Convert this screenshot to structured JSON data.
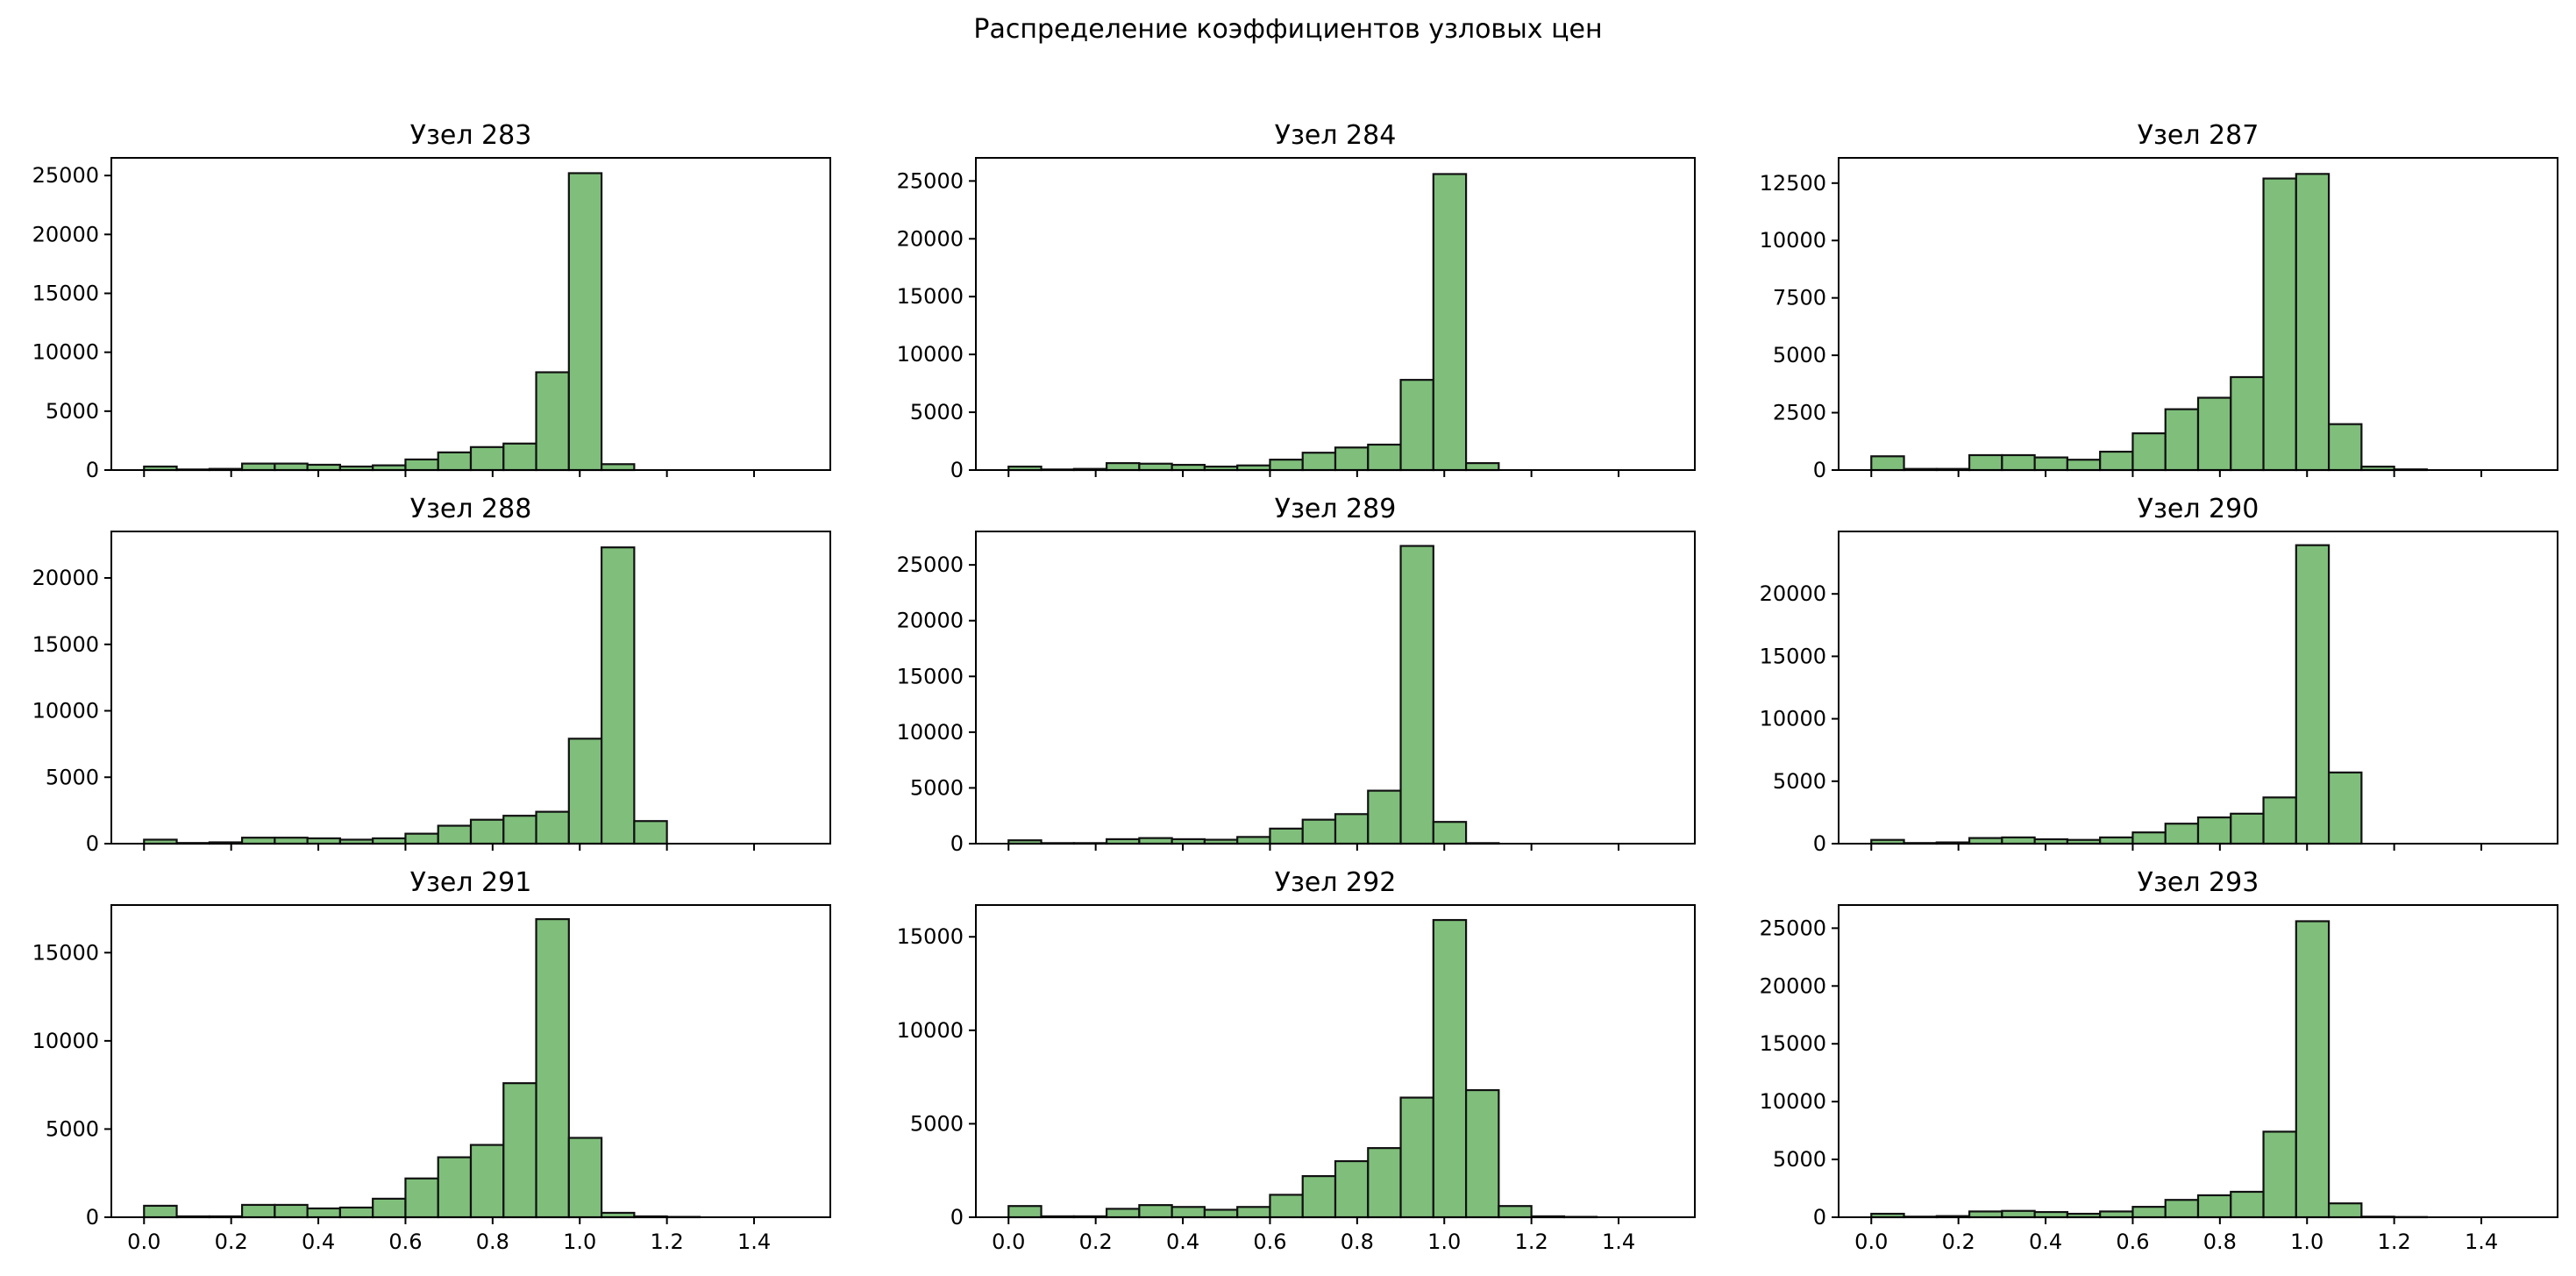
{
  "figure": {
    "suptitle": "Распределение коэффициентов узловых цен"
  },
  "style": {
    "bar_fill": "#7fbf7b",
    "bar_edge": "#111111"
  },
  "chart_data": [
    {
      "type": "bar",
      "title": "Узел 283",
      "bin_edges": [
        0,
        0.075,
        0.15,
        0.225,
        0.3,
        0.375,
        0.45,
        0.525,
        0.6,
        0.675,
        0.75,
        0.825,
        0.9,
        0.975,
        1.05,
        1.125,
        1.2,
        1.275,
        1.35,
        1.425,
        1.5
      ],
      "values": [
        300,
        50,
        100,
        550,
        550,
        450,
        300,
        400,
        900,
        1500,
        1950,
        2250,
        8300,
        25200,
        500,
        0,
        0,
        0,
        0,
        0
      ],
      "ylim": [
        0,
        26500
      ],
      "yticks": [
        0,
        5000,
        10000,
        15000,
        20000,
        25000
      ],
      "xticks": [
        0.0,
        0.2,
        0.4,
        0.6,
        0.8,
        1.0,
        1.2,
        1.4
      ],
      "xlim": [
        -0.075,
        1.575
      ]
    },
    {
      "type": "bar",
      "title": "Узел 284",
      "bin_edges": [
        0,
        0.075,
        0.15,
        0.225,
        0.3,
        0.375,
        0.45,
        0.525,
        0.6,
        0.675,
        0.75,
        0.825,
        0.9,
        0.975,
        1.05,
        1.125,
        1.2,
        1.275,
        1.35,
        1.425,
        1.5
      ],
      "values": [
        300,
        50,
        100,
        600,
        550,
        450,
        300,
        400,
        900,
        1500,
        1950,
        2200,
        7800,
        25600,
        600,
        0,
        0,
        0,
        0,
        0
      ],
      "ylim": [
        0,
        27000
      ],
      "yticks": [
        0,
        5000,
        10000,
        15000,
        20000,
        25000
      ],
      "xticks": [
        0.0,
        0.2,
        0.4,
        0.6,
        0.8,
        1.0,
        1.2,
        1.4
      ],
      "xlim": [
        -0.075,
        1.575
      ]
    },
    {
      "type": "bar",
      "title": "Узел 287",
      "bin_edges": [
        0,
        0.075,
        0.15,
        0.225,
        0.3,
        0.375,
        0.45,
        0.525,
        0.6,
        0.675,
        0.75,
        0.825,
        0.9,
        0.975,
        1.05,
        1.125,
        1.2,
        1.275,
        1.35,
        1.425,
        1.5
      ],
      "values": [
        600,
        50,
        50,
        650,
        650,
        550,
        450,
        800,
        1600,
        2650,
        3150,
        4050,
        12700,
        12900,
        2000,
        150,
        30,
        0,
        0,
        0
      ],
      "ylim": [
        0,
        13600
      ],
      "yticks": [
        0,
        2500,
        5000,
        7500,
        10000,
        12500
      ],
      "xticks": [
        0.0,
        0.2,
        0.4,
        0.6,
        0.8,
        1.0,
        1.2,
        1.4
      ],
      "xlim": [
        -0.075,
        1.575
      ]
    },
    {
      "type": "bar",
      "title": "Узел 288",
      "bin_edges": [
        0,
        0.075,
        0.15,
        0.225,
        0.3,
        0.375,
        0.45,
        0.525,
        0.6,
        0.675,
        0.75,
        0.825,
        0.9,
        0.975,
        1.05,
        1.125,
        1.2,
        1.275,
        1.35,
        1.425,
        1.5
      ],
      "values": [
        300,
        50,
        100,
        450,
        450,
        400,
        300,
        400,
        750,
        1350,
        1800,
        2100,
        2400,
        7900,
        22300,
        1700,
        0,
        0,
        0,
        0
      ],
      "ylim": [
        0,
        23500
      ],
      "yticks": [
        0,
        5000,
        10000,
        15000,
        20000
      ],
      "xticks": [
        0.0,
        0.2,
        0.4,
        0.6,
        0.8,
        1.0,
        1.2,
        1.4
      ],
      "xlim": [
        -0.075,
        1.575
      ]
    },
    {
      "type": "bar",
      "title": "Узел 289",
      "bin_edges": [
        0,
        0.075,
        0.15,
        0.225,
        0.3,
        0.375,
        0.45,
        0.525,
        0.6,
        0.675,
        0.75,
        0.825,
        0.9,
        0.975,
        1.05,
        1.125,
        1.2,
        1.275,
        1.35,
        1.425,
        1.5
      ],
      "values": [
        300,
        50,
        50,
        400,
        500,
        400,
        350,
        600,
        1350,
        2150,
        2650,
        4750,
        26700,
        1950,
        50,
        0,
        0,
        0,
        0,
        0
      ],
      "ylim": [
        0,
        28000
      ],
      "yticks": [
        0,
        5000,
        10000,
        15000,
        20000,
        25000
      ],
      "xticks": [
        0.0,
        0.2,
        0.4,
        0.6,
        0.8,
        1.0,
        1.2,
        1.4
      ],
      "xlim": [
        -0.075,
        1.575
      ]
    },
    {
      "type": "bar",
      "title": "Узел 290",
      "bin_edges": [
        0,
        0.075,
        0.15,
        0.225,
        0.3,
        0.375,
        0.45,
        0.525,
        0.6,
        0.675,
        0.75,
        0.825,
        0.9,
        0.975,
        1.05,
        1.125,
        1.2,
        1.275,
        1.35,
        1.425,
        1.5
      ],
      "values": [
        300,
        50,
        100,
        450,
        500,
        350,
        300,
        500,
        900,
        1600,
        2100,
        2400,
        3700,
        23900,
        5700,
        0,
        0,
        0,
        0,
        0
      ],
      "ylim": [
        0,
        25000
      ],
      "yticks": [
        0,
        5000,
        10000,
        15000,
        20000
      ],
      "xticks": [
        0.0,
        0.2,
        0.4,
        0.6,
        0.8,
        1.0,
        1.2,
        1.4
      ],
      "xlim": [
        -0.075,
        1.575
      ]
    },
    {
      "type": "bar",
      "title": "Узел 291",
      "bin_edges": [
        0,
        0.075,
        0.15,
        0.225,
        0.3,
        0.375,
        0.45,
        0.525,
        0.6,
        0.675,
        0.75,
        0.825,
        0.9,
        0.975,
        1.05,
        1.125,
        1.2,
        1.275,
        1.35,
        1.425,
        1.5
      ],
      "values": [
        650,
        50,
        50,
        700,
        700,
        500,
        550,
        1050,
        2200,
        3400,
        4100,
        7600,
        16900,
        4500,
        250,
        50,
        20,
        0,
        0,
        0
      ],
      "ylim": [
        0,
        17700
      ],
      "yticks": [
        0,
        5000,
        10000,
        15000
      ],
      "xticks": [
        0.0,
        0.2,
        0.4,
        0.6,
        0.8,
        1.0,
        1.2,
        1.4
      ],
      "xlim": [
        -0.075,
        1.575
      ]
    },
    {
      "type": "bar",
      "title": "Узел 292",
      "bin_edges": [
        0,
        0.075,
        0.15,
        0.225,
        0.3,
        0.375,
        0.45,
        0.525,
        0.6,
        0.675,
        0.75,
        0.825,
        0.9,
        0.975,
        1.05,
        1.125,
        1.2,
        1.275,
        1.35,
        1.425,
        1.5
      ],
      "values": [
        600,
        50,
        50,
        450,
        650,
        550,
        400,
        550,
        1200,
        2200,
        3000,
        3700,
        6400,
        15900,
        6800,
        600,
        50,
        20,
        0,
        0
      ],
      "ylim": [
        0,
        16700
      ],
      "yticks": [
        0,
        5000,
        10000,
        15000
      ],
      "xticks": [
        0.0,
        0.2,
        0.4,
        0.6,
        0.8,
        1.0,
        1.2,
        1.4
      ],
      "xlim": [
        -0.075,
        1.575
      ]
    },
    {
      "type": "bar",
      "title": "Узел 293",
      "bin_edges": [
        0,
        0.075,
        0.15,
        0.225,
        0.3,
        0.375,
        0.45,
        0.525,
        0.6,
        0.675,
        0.75,
        0.825,
        0.9,
        0.975,
        1.05,
        1.125,
        1.2,
        1.275,
        1.35,
        1.425,
        1.5
      ],
      "values": [
        300,
        50,
        100,
        500,
        550,
        450,
        300,
        500,
        900,
        1500,
        1900,
        2200,
        7400,
        25600,
        1200,
        50,
        20,
        0,
        0,
        0
      ],
      "ylim": [
        0,
        27000
      ],
      "yticks": [
        0,
        5000,
        10000,
        15000,
        20000,
        25000
      ],
      "xticks": [
        0.0,
        0.2,
        0.4,
        0.6,
        0.8,
        1.0,
        1.2,
        1.4
      ],
      "xlim": [
        -0.075,
        1.575
      ]
    }
  ]
}
